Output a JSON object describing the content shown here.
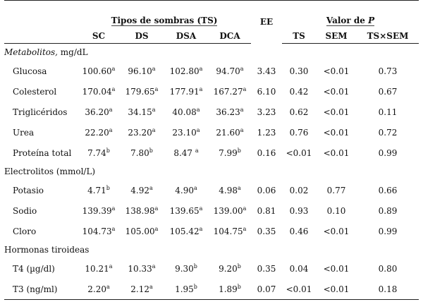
{
  "table": {
    "header": {
      "group_ts": "Tipos de sombras (TS)",
      "ee": "EE",
      "group_p_prefix": "Valor de ",
      "group_p_symbol": "P",
      "sub": [
        "SC",
        "DS",
        "DSA",
        "DCA",
        "TS",
        "SEM",
        "TS×SEM"
      ]
    },
    "sections": [
      {
        "title_em": "Metabolitos,",
        "title_rest": " mg/dL",
        "rows": [
          {
            "label": "Glucosa",
            "cells": [
              {
                "v": "100.60",
                "s": "a"
              },
              {
                "v": "96.10",
                "s": "a"
              },
              {
                "v": "102.80",
                "s": "a"
              },
              {
                "v": "94.70",
                "s": "a"
              }
            ],
            "ee": "3.43",
            "ts": "0.30",
            "sem": "<0.01",
            "tsxsem": "0.73"
          },
          {
            "label": "Colesterol",
            "cells": [
              {
                "v": "170.04",
                "s": "a"
              },
              {
                "v": "179.65",
                "s": "a"
              },
              {
                "v": "177.91",
                "s": "a"
              },
              {
                "v": "167.27",
                "s": "a"
              }
            ],
            "ee": "6.10",
            "ts": "0.42",
            "sem": "<0.01",
            "tsxsem": "0.67"
          },
          {
            "label": "Triglicéridos",
            "cells": [
              {
                "v": "36.20",
                "s": "a"
              },
              {
                "v": "34.15",
                "s": "a"
              },
              {
                "v": "40.08",
                "s": "a"
              },
              {
                "v": "36.23",
                "s": "a"
              }
            ],
            "ee": "3.23",
            "ts": "0.62",
            "sem": "<0.01",
            "tsxsem": "0.11"
          },
          {
            "label": "Urea",
            "cells": [
              {
                "v": "22.20",
                "s": "a"
              },
              {
                "v": "23.20",
                "s": "a"
              },
              {
                "v": "23.10",
                "s": "a"
              },
              {
                "v": "21.60",
                "s": "a"
              }
            ],
            "ee": "1.23",
            "ts": "0.76",
            "sem": "<0.01",
            "tsxsem": "0.72"
          },
          {
            "label": "Proteína total",
            "cells": [
              {
                "v": "7.74",
                "s": "b"
              },
              {
                "v": "7.80",
                "s": "b"
              },
              {
                "v": "8.47 ",
                "s": "a"
              },
              {
                "v": "7.99",
                "s": "b"
              }
            ],
            "ee": "0.16",
            "ts": "<0.01",
            "sem": "<0.01",
            "tsxsem": "0.99"
          }
        ]
      },
      {
        "title_em": "",
        "title_rest": "Electrolitos (mmol/L)",
        "rows": [
          {
            "label": "Potasio",
            "cells": [
              {
                "v": "4.71",
                "s": "b"
              },
              {
                "v": "4.92",
                "s": "a"
              },
              {
                "v": "4.90",
                "s": "a"
              },
              {
                "v": "4.98",
                "s": "a"
              }
            ],
            "ee": "0.06",
            "ts": "0.02",
            "sem": "0.77",
            "tsxsem": "0.66"
          },
          {
            "label": "Sodio",
            "cells": [
              {
                "v": "139.39",
                "s": "a"
              },
              {
                "v": "138.98",
                "s": "a"
              },
              {
                "v": "139.65",
                "s": "a"
              },
              {
                "v": "139.00",
                "s": "a"
              }
            ],
            "ee": "0.81",
            "ts": "0.93",
            "sem": "0.10",
            "tsxsem": "0.89"
          },
          {
            "label": "Cloro",
            "cells": [
              {
                "v": "104.73",
                "s": "a"
              },
              {
                "v": "105.00",
                "s": "a"
              },
              {
                "v": "105.42",
                "s": "a"
              },
              {
                "v": "104.75",
                "s": "a"
              }
            ],
            "ee": "0.35",
            "ts": "0.46",
            "sem": "<0.01",
            "tsxsem": "0.99"
          }
        ]
      },
      {
        "title_em": "",
        "title_rest": "Hormonas tiroideas",
        "rows": [
          {
            "label": "T4 (µg/dl)",
            "cells": [
              {
                "v": "10.21",
                "s": "a"
              },
              {
                "v": "10.33",
                "s": "a"
              },
              {
                "v": "9.30",
                "s": "b"
              },
              {
                "v": "9.20",
                "s": "b"
              }
            ],
            "ee": "0.35",
            "ts": "0.04",
            "sem": "<0.01",
            "tsxsem": "0.80"
          },
          {
            "label": "T3 (ng/ml)",
            "cells": [
              {
                "v": "2.20",
                "s": "a"
              },
              {
                "v": "2.12",
                "s": "a"
              },
              {
                "v": "1.95",
                "s": "b"
              },
              {
                "v": "1.89",
                "s": "b"
              }
            ],
            "ee": "0.07",
            "ts": "<0.01",
            "sem": "<0.01",
            "tsxsem": "0.18"
          }
        ]
      }
    ]
  }
}
